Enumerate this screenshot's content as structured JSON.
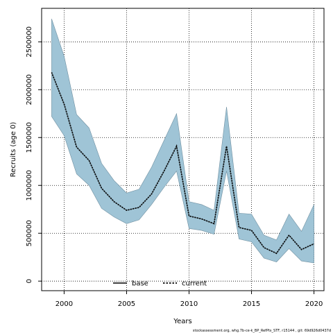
{
  "chart_data": {
    "type": "area",
    "xlabel": "Years",
    "ylabel": "Recruits (age 0)",
    "xlim": [
      1998.2,
      2020.8
    ],
    "ylim": [
      -100000,
      2850000
    ],
    "x_ticks": [
      2000,
      2005,
      2010,
      2015,
      2020
    ],
    "y_ticks": [
      0,
      500000,
      1000000,
      1500000,
      2000000,
      2500000
    ],
    "x_tick_labels": [
      "2000",
      "2005",
      "2010",
      "2015",
      "2020"
    ],
    "y_tick_labels": [
      "0",
      "500000",
      "1000000",
      "1500000",
      "2000000",
      "2500000"
    ],
    "grid": true,
    "legend_position": "bottom-center",
    "colors": {
      "band": "#9fc4d6",
      "band_edge": "#6f8fa0",
      "base": "#000000",
      "current": "#000000"
    },
    "x": [
      1999,
      2000,
      2001,
      2002,
      2003,
      2004,
      2005,
      2006,
      2007,
      2008,
      2009,
      2010,
      2011,
      2012,
      2013,
      2014,
      2015,
      2016,
      2017,
      2018,
      2019,
      2020
    ],
    "band": {
      "upper": [
        2740000,
        2350000,
        1740000,
        1600000,
        1230000,
        1050000,
        920000,
        960000,
        1190000,
        1470000,
        1750000,
        830000,
        800000,
        740000,
        1820000,
        710000,
        700000,
        480000,
        430000,
        700000,
        520000,
        800000
      ],
      "lower": [
        1720000,
        1520000,
        1120000,
        1000000,
        760000,
        670000,
        600000,
        640000,
        800000,
        980000,
        1150000,
        550000,
        530000,
        490000,
        1150000,
        440000,
        410000,
        240000,
        200000,
        340000,
        210000,
        190000
      ]
    },
    "series": [
      {
        "name": "base",
        "style": "solid",
        "values": [
          2180000,
          1850000,
          1400000,
          1260000,
          970000,
          830000,
          740000,
          770000,
          910000,
          1150000,
          1410000,
          680000,
          650000,
          600000,
          1410000,
          560000,
          530000,
          350000,
          290000,
          480000,
          330000,
          390000
        ]
      },
      {
        "name": "current",
        "style": "dotted",
        "values": [
          2180000,
          1850000,
          1400000,
          1260000,
          970000,
          830000,
          740000,
          770000,
          910000,
          1150000,
          1410000,
          680000,
          650000,
          600000,
          1410000,
          560000,
          530000,
          350000,
          290000,
          480000,
          330000,
          390000
        ]
      }
    ]
  },
  "footer_text": "stockassessment.org, whg.7b-ce-k_BP_RefPts_STF, r15144 , git: 69d926d0437d"
}
